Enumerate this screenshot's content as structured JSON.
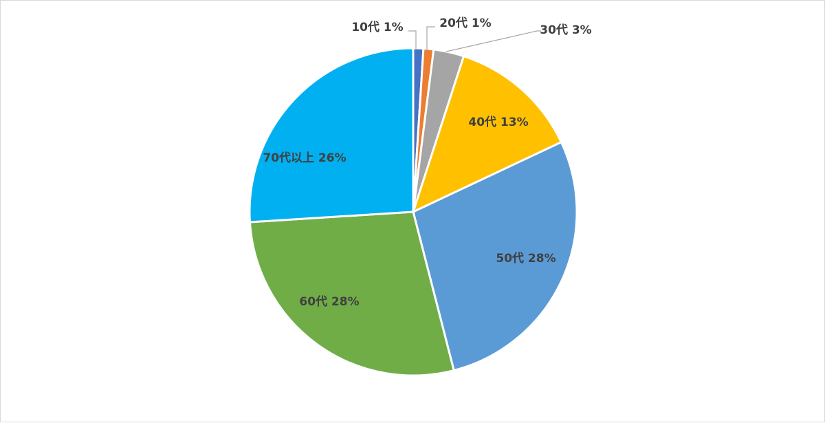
{
  "chart_data": {
    "type": "pie",
    "title": "",
    "slices": [
      {
        "label": "10代",
        "percent_label": "1%",
        "value": 1,
        "color": "#4472c4"
      },
      {
        "label": "20代",
        "percent_label": "1%",
        "value": 1,
        "color": "#ed7d31"
      },
      {
        "label": "30代",
        "percent_label": "3%",
        "value": 3,
        "color": "#a5a5a5"
      },
      {
        "label": "40代",
        "percent_label": "13%",
        "value": 13,
        "color": "#ffc000"
      },
      {
        "label": "50代",
        "percent_label": "28%",
        "value": 28,
        "color": "#5b9bd5"
      },
      {
        "label": "60代",
        "percent_label": "28%",
        "value": 28,
        "color": "#70ad47"
      },
      {
        "label": "70代以上",
        "percent_label": "26%",
        "value": 26,
        "color": "#00b0f0"
      }
    ],
    "start_direction": "12 o'clock",
    "rotation": "clockwise",
    "legend": "none"
  }
}
